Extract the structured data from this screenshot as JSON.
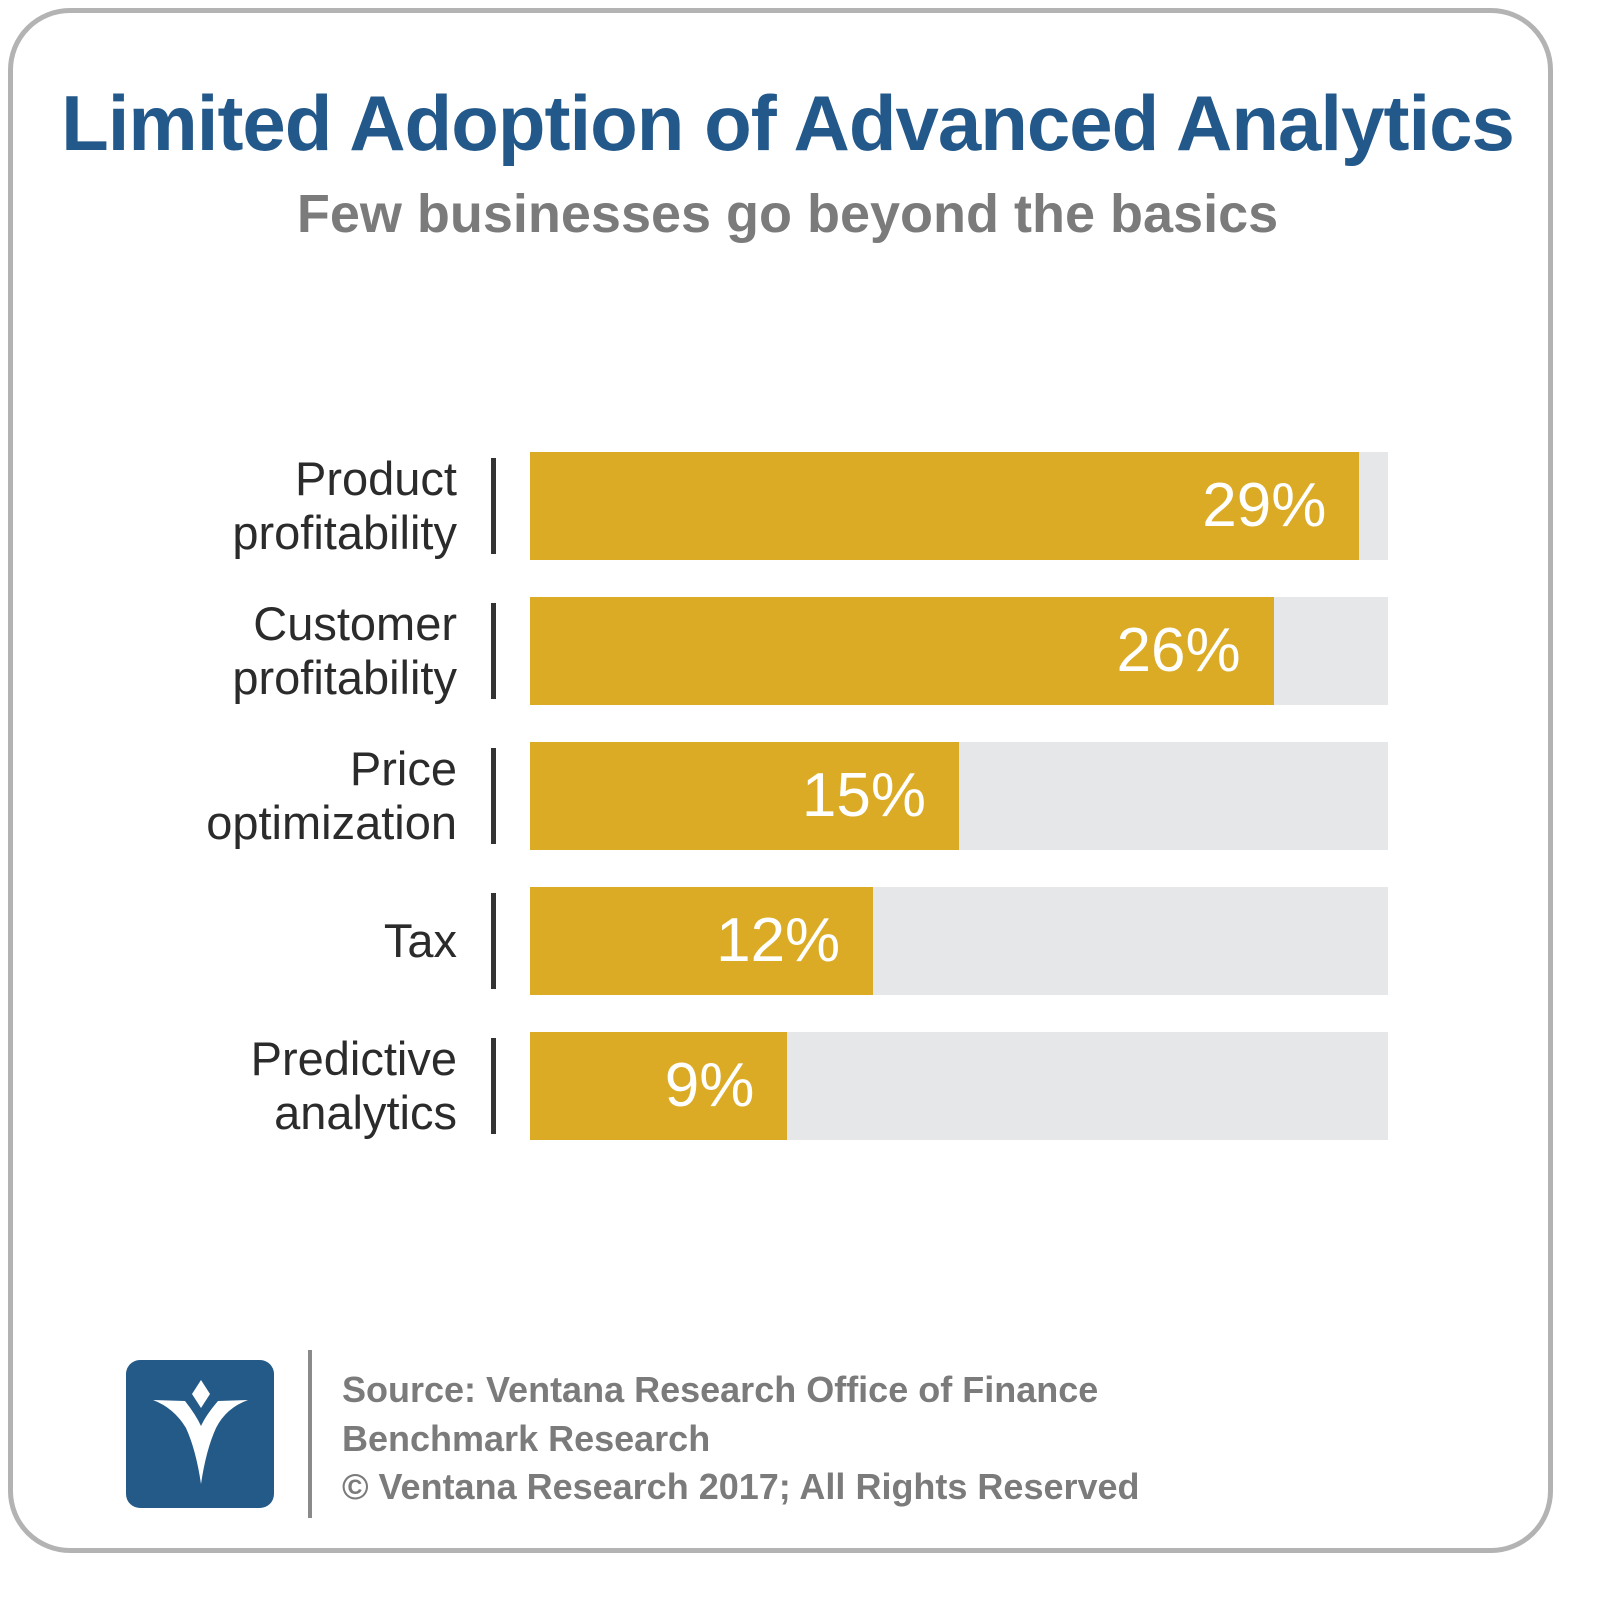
{
  "title": "Limited Adoption of Advanced Analytics",
  "subtitle": "Few businesses go beyond the basics",
  "colors": {
    "bar": "#dbab25",
    "track": "#e6e7e8",
    "title": "#23588a",
    "logo": "#245a88"
  },
  "chart_data": {
    "type": "bar",
    "orientation": "horizontal",
    "title": "Limited Adoption of Advanced Analytics",
    "subtitle": "Few businesses go beyond the basics",
    "categories": [
      [
        "Product",
        "profitability"
      ],
      [
        "Customer",
        "profitability"
      ],
      [
        "Price",
        "optimization"
      ],
      [
        "Tax"
      ],
      [
        "Predictive",
        "analytics"
      ]
    ],
    "values": [
      29,
      26,
      15,
      12,
      9
    ],
    "value_labels": [
      "29%",
      "26%",
      "15%",
      "12%",
      "9%"
    ],
    "xlim": [
      0,
      30
    ],
    "grid": false
  },
  "footer": {
    "lines": [
      "Source: Ventana Research Office of Finance",
      "Benchmark Research",
      "© Ventana Research 2017; All Rights Reserved"
    ],
    "logo_icon": "ventana-v-logo"
  }
}
